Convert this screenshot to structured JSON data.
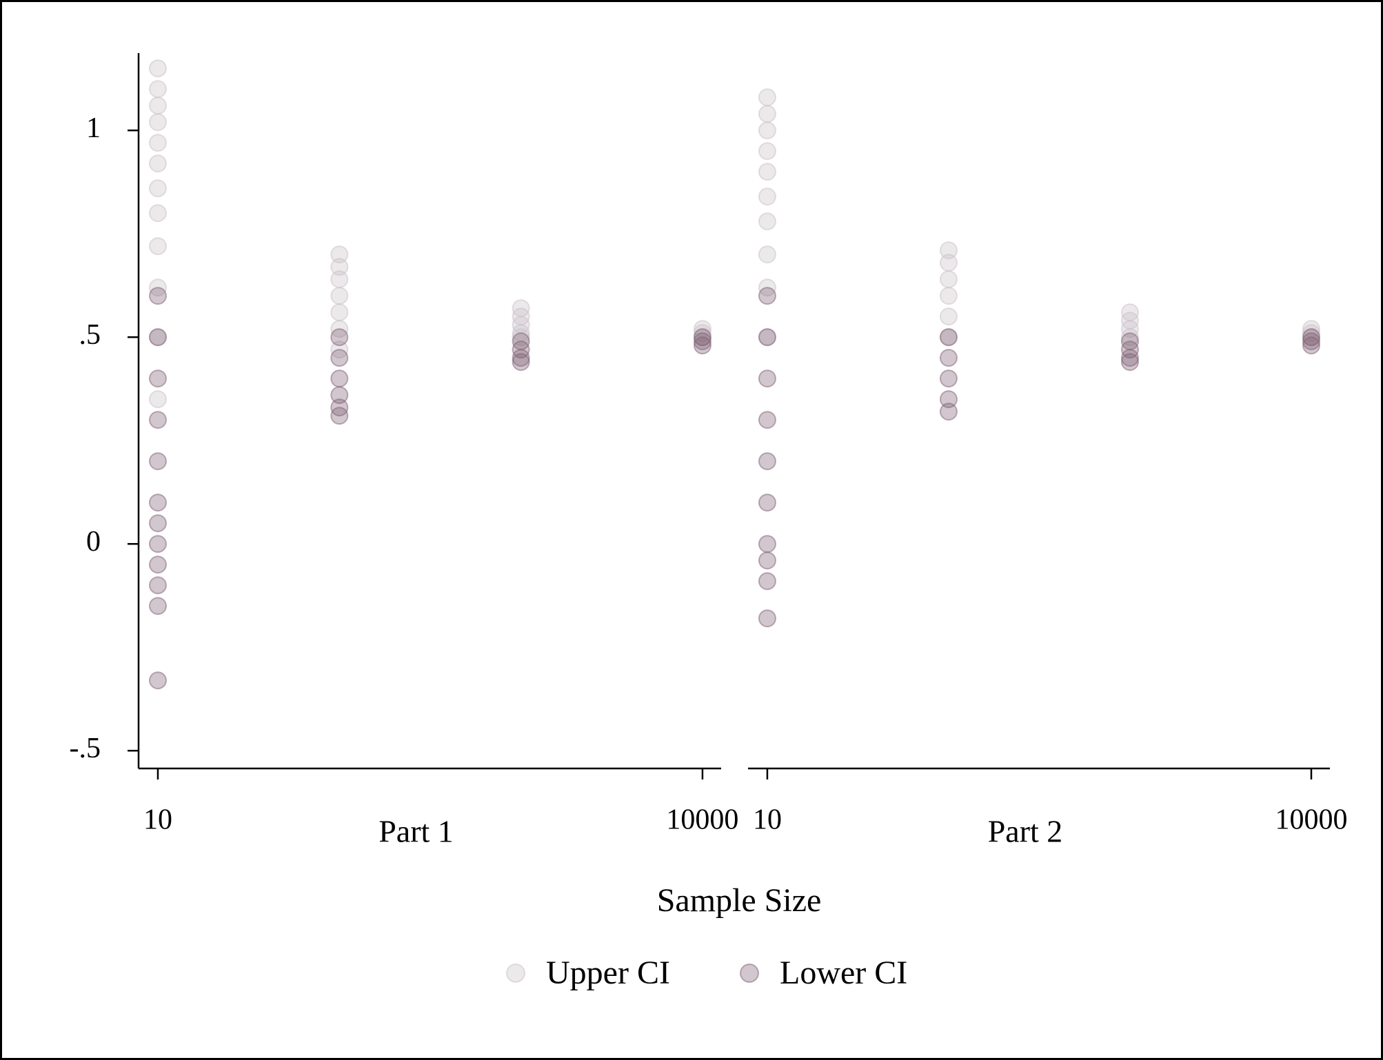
{
  "chart_data": {
    "type": "scatter",
    "xlabel": "Sample Size",
    "xscale": "log",
    "ylim": [
      -0.543,
      1.187
    ],
    "yticks": [
      {
        "value": -0.5,
        "label": "-.5"
      },
      0,
      {
        "value": 0.5,
        "label": ".5"
      },
      1
    ],
    "legend": "bottom",
    "panels": [
      {
        "title": "Part 1",
        "xlim": [
          7.83,
          12670
        ],
        "xticks": [
          10,
          10000
        ],
        "series": [
          {
            "name": "Upper CI",
            "color": "#c9bfc7",
            "x": [
              10,
              10,
              10,
              10,
              10,
              10,
              10,
              10,
              10,
              10,
              10,
              10,
              100,
              100,
              100,
              100,
              100,
              100,
              100,
              1000,
              1000,
              1000,
              1000,
              1000,
              10000,
              10000,
              10000
            ],
            "values": [
              1.15,
              1.1,
              1.06,
              1.02,
              0.97,
              0.92,
              0.86,
              0.8,
              0.72,
              0.62,
              0.5,
              0.35,
              0.7,
              0.67,
              0.64,
              0.6,
              0.56,
              0.52,
              0.47,
              0.57,
              0.55,
              0.53,
              0.51,
              0.5,
              0.52,
              0.51,
              0.5
            ]
          },
          {
            "name": "Lower CI",
            "color": "#7d5f74",
            "x": [
              10,
              10,
              10,
              10,
              10,
              10,
              10,
              10,
              10,
              10,
              10,
              10,
              100,
              100,
              100,
              100,
              100,
              100,
              1000,
              1000,
              1000,
              1000,
              10000,
              10000,
              10000
            ],
            "values": [
              0.6,
              0.5,
              0.4,
              0.3,
              0.2,
              0.1,
              0.05,
              0.0,
              -0.05,
              -0.1,
              -0.15,
              -0.33,
              0.5,
              0.45,
              0.4,
              0.36,
              0.33,
              0.31,
              0.49,
              0.47,
              0.45,
              0.44,
              0.5,
              0.49,
              0.48
            ]
          }
        ]
      },
      {
        "title": "Part 2",
        "xlim": [
          7.83,
          12670
        ],
        "xticks": [
          10,
          10000
        ],
        "series": [
          {
            "color": "#c9bfc7",
            "x": [
              10,
              10,
              10,
              10,
              10,
              10,
              10,
              10,
              10,
              10,
              100,
              100,
              100,
              100,
              100,
              100,
              1000,
              1000,
              1000,
              1000,
              10000,
              10000,
              10000
            ],
            "values": [
              1.08,
              1.04,
              1.0,
              0.95,
              0.9,
              0.84,
              0.78,
              0.7,
              0.62,
              0.5,
              0.71,
              0.68,
              0.64,
              0.6,
              0.55,
              0.5,
              0.56,
              0.54,
              0.52,
              0.5,
              0.52,
              0.51,
              0.5
            ]
          },
          {
            "color": "#7d5f74",
            "x": [
              10,
              10,
              10,
              10,
              10,
              10,
              10,
              10,
              10,
              10,
              100,
              100,
              100,
              100,
              100,
              1000,
              1000,
              1000,
              1000,
              10000,
              10000,
              10000
            ],
            "values": [
              0.6,
              0.5,
              0.4,
              0.3,
              0.2,
              0.1,
              0.0,
              -0.04,
              -0.09,
              -0.18,
              0.5,
              0.45,
              0.4,
              0.35,
              0.32,
              0.49,
              0.47,
              0.45,
              0.44,
              0.5,
              0.49,
              0.48
            ]
          }
        ]
      }
    ]
  }
}
